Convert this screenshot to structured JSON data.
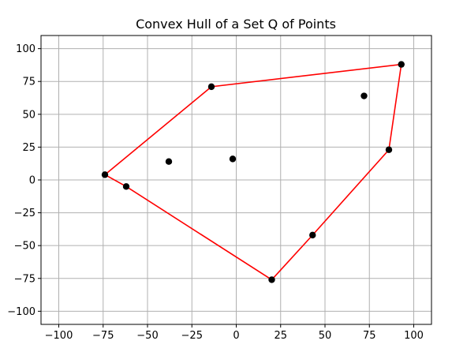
{
  "chart_data": {
    "type": "scatter",
    "title": "Convex Hull of a Set Q of Points",
    "xlabel": "",
    "ylabel": "",
    "xlim": [
      -110,
      110
    ],
    "ylim": [
      -110,
      110
    ],
    "x_ticks": [
      -100,
      -75,
      -50,
      -25,
      0,
      25,
      50,
      75,
      100
    ],
    "y_ticks": [
      -100,
      -75,
      -50,
      -25,
      0,
      25,
      50,
      75,
      100
    ],
    "x_tick_labels": [
      "−100",
      "−75",
      "−50",
      "−25",
      "0",
      "25",
      "50",
      "75",
      "100"
    ],
    "y_tick_labels": [
      "−100",
      "−75",
      "−50",
      "−25",
      "0",
      "25",
      "50",
      "75",
      "100"
    ],
    "grid": true,
    "point_color": "#000000",
    "hull_color": "#ff0000",
    "points": [
      {
        "x": -74,
        "y": 4
      },
      {
        "x": -62,
        "y": -5
      },
      {
        "x": -38,
        "y": 14
      },
      {
        "x": -14,
        "y": 71
      },
      {
        "x": -2,
        "y": 16
      },
      {
        "x": 20,
        "y": -76
      },
      {
        "x": 43,
        "y": -42
      },
      {
        "x": 72,
        "y": 64
      },
      {
        "x": 86,
        "y": 23
      },
      {
        "x": 93,
        "y": 88
      }
    ],
    "hull": [
      {
        "x": -74,
        "y": 4
      },
      {
        "x": -14,
        "y": 71
      },
      {
        "x": 93,
        "y": 88
      },
      {
        "x": 86,
        "y": 23
      },
      {
        "x": 43,
        "y": -42
      },
      {
        "x": 20,
        "y": -76
      },
      {
        "x": -62,
        "y": -5
      },
      {
        "x": -74,
        "y": 4
      }
    ]
  }
}
